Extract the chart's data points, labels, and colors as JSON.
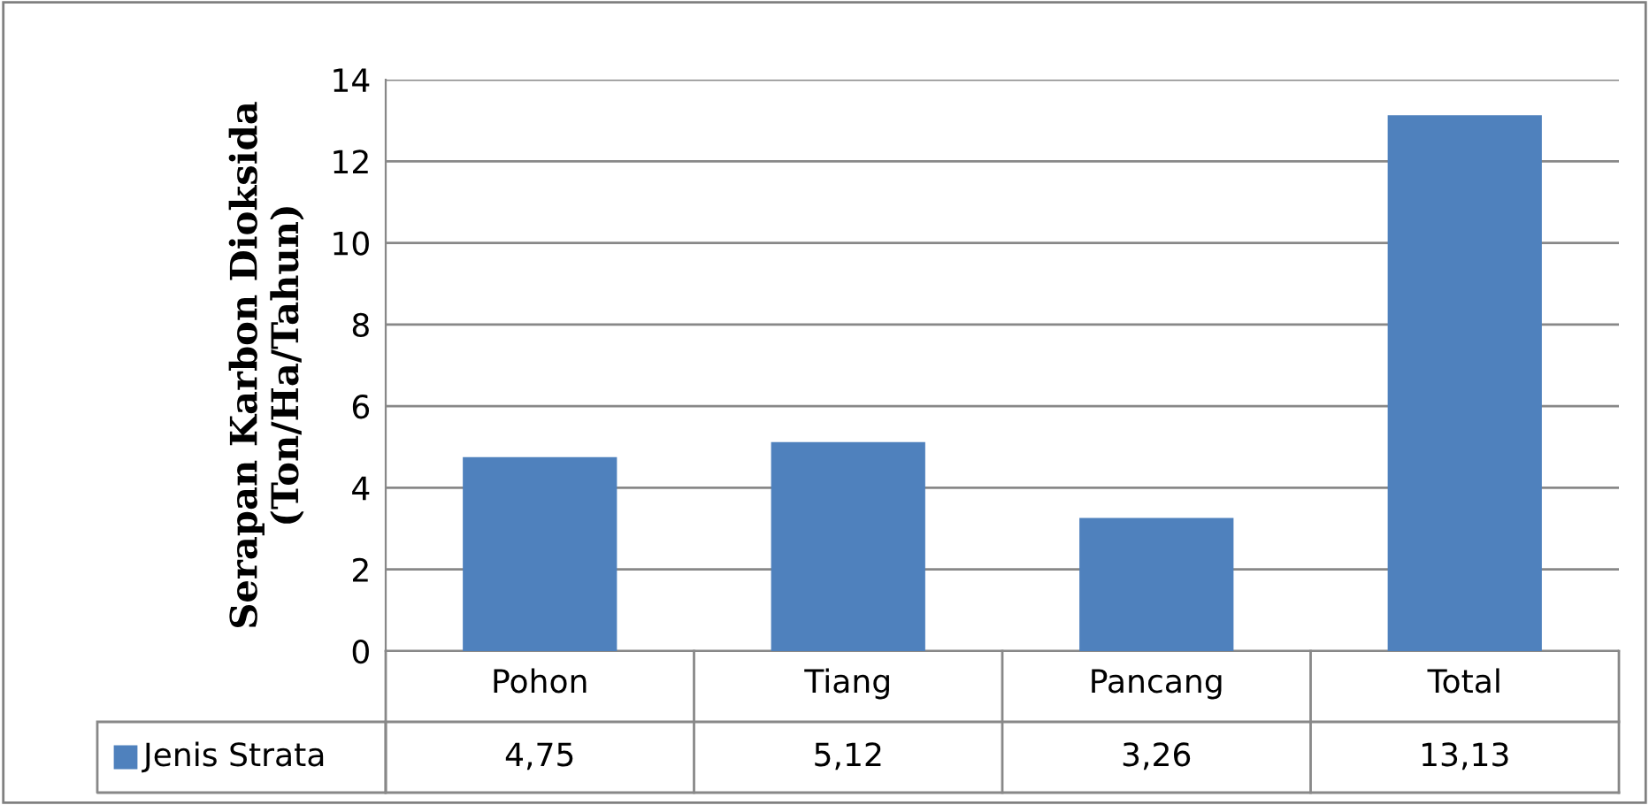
{
  "chart_data": {
    "type": "bar",
    "ylabel": "Serapan Karbon Dioksida\n(Ton/Ha/Tahun)",
    "categories": [
      "Pohon",
      "Tiang",
      "Pancang",
      "Total"
    ],
    "series": [
      {
        "name": "Jenis Strata",
        "color": "#4f81bd",
        "values": [
          4.75,
          5.12,
          3.26,
          13.13
        ],
        "value_labels": [
          "4,75",
          "5,12",
          "3,26",
          "13,13"
        ]
      }
    ],
    "ylim": [
      0,
      14
    ],
    "yticks": [
      0,
      2,
      4,
      6,
      8,
      10,
      12,
      14
    ],
    "grid": "y",
    "legend": "bottom left"
  }
}
